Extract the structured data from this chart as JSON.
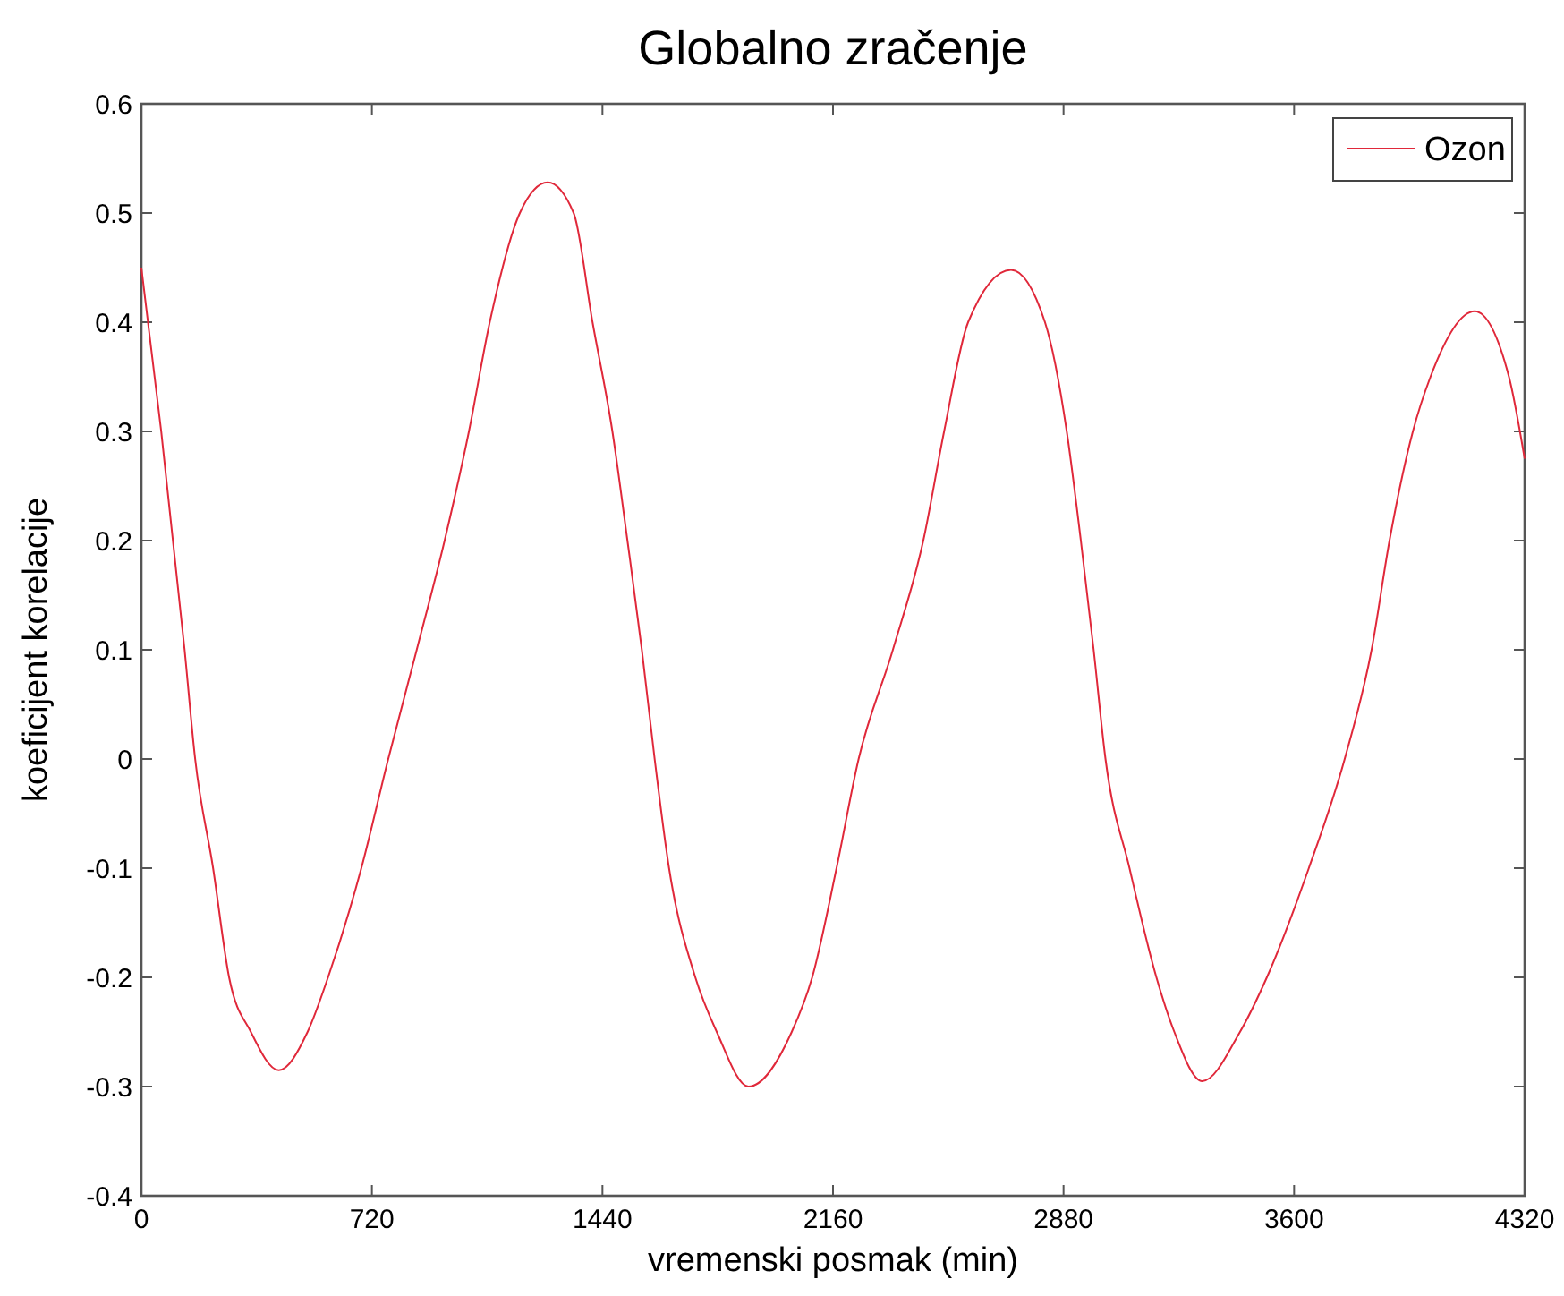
{
  "chart_data": {
    "type": "line",
    "title": "Globalno zračenje",
    "xlabel": "vremenski posmak (min)",
    "ylabel": "koeficijent korelacije",
    "xlim": [
      0,
      4320
    ],
    "xticks": [
      0,
      720,
      1440,
      2160,
      2880,
      3600,
      4320
    ],
    "ylim": [
      -0.4,
      0.6
    ],
    "yticks": [
      -0.4,
      -0.3,
      -0.2,
      -0.1,
      0,
      0.1,
      0.2,
      0.3,
      0.4,
      0.5,
      0.6
    ],
    "grid": false,
    "legend": "top right",
    "marker": "none",
    "line_style": "solid",
    "series": [
      {
        "name": "Ozon",
        "color": "#e0283a",
        "x": [
          0,
          62,
          135,
          168,
          224,
          274,
          342,
          429,
          519,
          583,
          687,
          771,
          860,
          947,
          1023,
          1088,
          1182,
          1269,
          1350,
          1409,
          1471,
          1518,
          1563,
          1603,
          1648,
          1730,
          1797,
          1896,
          2031,
          2095,
          2171,
          2240,
          2347,
          2442,
          2507,
          2582,
          2716,
          2822,
          2890,
          2934,
          2974,
          3011,
          3086,
          3170,
          3226,
          3313,
          3431,
          3515,
          3646,
          3758,
          3842,
          3898,
          3971,
          4026,
          4164,
          4271,
          4320
        ],
        "values": [
          0.45,
          0.3,
          0.1,
          0,
          -0.1,
          -0.2,
          -0.25,
          -0.285,
          -0.25,
          -0.2,
          -0.1,
          0,
          0.1,
          0.2,
          0.3,
          0.4,
          0.5,
          0.528,
          0.5,
          0.4,
          0.3,
          0.2,
          0.1,
          0,
          -0.1,
          -0.2,
          -0.25,
          -0.3,
          -0.25,
          -0.2,
          -0.1,
          0,
          0.1,
          0.2,
          0.3,
          0.4,
          0.448,
          0.4,
          0.3,
          0.2,
          0.1,
          0,
          -0.1,
          -0.2,
          -0.25,
          -0.295,
          -0.25,
          -0.2,
          -0.1,
          0,
          0.1,
          0.2,
          0.3,
          0.35,
          0.41,
          0.35,
          0.275
        ]
      }
    ]
  }
}
